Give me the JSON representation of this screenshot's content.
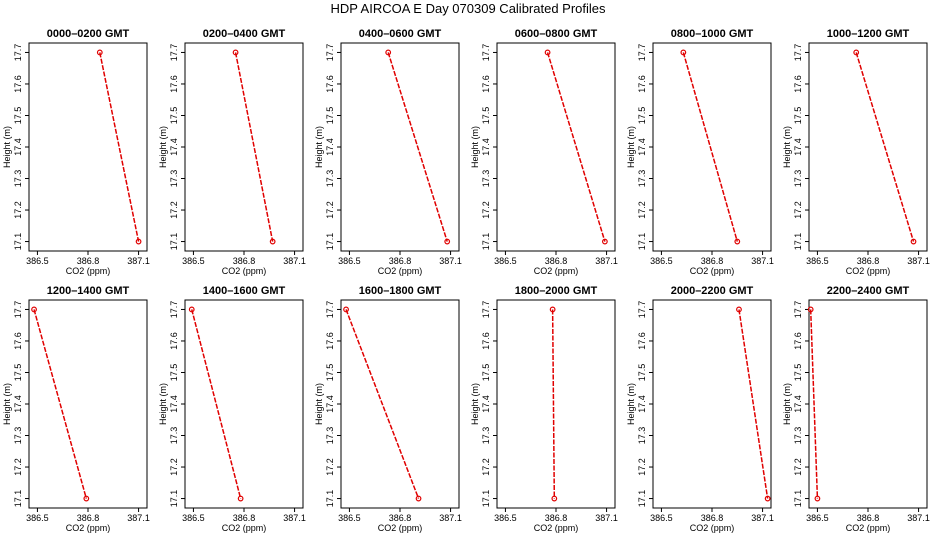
{
  "figure": {
    "title": "HDP  AIRCOA E  Day 070309  Calibrated Profiles"
  },
  "chart_data": [
    {
      "type": "line",
      "title": "0000–0200 GMT",
      "xlabel": "CO2 (ppm)",
      "ylabel": "Height (m)",
      "xlim": [
        386.45,
        387.15
      ],
      "ylim": [
        17.07,
        17.73
      ],
      "xticks": [
        386.5,
        386.8,
        387.1
      ],
      "xtick_labels": [
        "386.5",
        "386.8",
        "387.1"
      ],
      "yticks": [
        17.1,
        17.2,
        17.3,
        17.4,
        17.5,
        17.6,
        17.7
      ],
      "ytick_labels": [
        "17.1",
        "17.2",
        "17.3",
        "17.4",
        "17.5",
        "17.6",
        "17.7"
      ],
      "grid": false,
      "series": [
        {
          "x": [
            386.87,
            387.1
          ],
          "y": [
            17.7,
            17.1
          ],
          "color": "#e00000"
        }
      ]
    },
    {
      "type": "line",
      "title": "0200–0400 GMT",
      "xlabel": "CO2 (ppm)",
      "ylabel": "Height (m)",
      "xlim": [
        386.45,
        387.15
      ],
      "ylim": [
        17.07,
        17.73
      ],
      "xticks": [
        386.5,
        386.8,
        387.1
      ],
      "xtick_labels": [
        "386.5",
        "386.8",
        "387.1"
      ],
      "yticks": [
        17.1,
        17.2,
        17.3,
        17.4,
        17.5,
        17.6,
        17.7
      ],
      "ytick_labels": [
        "17.1",
        "17.2",
        "17.3",
        "17.4",
        "17.5",
        "17.6",
        "17.7"
      ],
      "grid": false,
      "series": [
        {
          "x": [
            386.75,
            386.97
          ],
          "y": [
            17.7,
            17.1
          ],
          "color": "#e00000"
        }
      ]
    },
    {
      "type": "line",
      "title": "0400–0600 GMT",
      "xlabel": "CO2 (ppm)",
      "ylabel": "Height (m)",
      "xlim": [
        386.45,
        387.15
      ],
      "ylim": [
        17.07,
        17.73
      ],
      "xticks": [
        386.5,
        386.8,
        387.1
      ],
      "xtick_labels": [
        "386.5",
        "386.8",
        "387.1"
      ],
      "yticks": [
        17.1,
        17.2,
        17.3,
        17.4,
        17.5,
        17.6,
        17.7
      ],
      "ytick_labels": [
        "17.1",
        "17.2",
        "17.3",
        "17.4",
        "17.5",
        "17.6",
        "17.7"
      ],
      "grid": false,
      "series": [
        {
          "x": [
            386.73,
            387.08
          ],
          "y": [
            17.7,
            17.1
          ],
          "color": "#e00000"
        }
      ]
    },
    {
      "type": "line",
      "title": "0600–0800 GMT",
      "xlabel": "CO2 (ppm)",
      "ylabel": "Height (m)",
      "xlim": [
        386.45,
        387.15
      ],
      "ylim": [
        17.07,
        17.73
      ],
      "xticks": [
        386.5,
        386.8,
        387.1
      ],
      "xtick_labels": [
        "386.5",
        "386.8",
        "387.1"
      ],
      "yticks": [
        17.1,
        17.2,
        17.3,
        17.4,
        17.5,
        17.6,
        17.7
      ],
      "ytick_labels": [
        "17.1",
        "17.2",
        "17.3",
        "17.4",
        "17.5",
        "17.6",
        "17.7"
      ],
      "grid": false,
      "series": [
        {
          "x": [
            386.75,
            387.09
          ],
          "y": [
            17.7,
            17.1
          ],
          "color": "#e00000"
        }
      ]
    },
    {
      "type": "line",
      "title": "0800–1000 GMT",
      "xlabel": "CO2 (ppm)",
      "ylabel": "Height (m)",
      "xlim": [
        386.45,
        387.15
      ],
      "ylim": [
        17.07,
        17.73
      ],
      "xticks": [
        386.5,
        386.8,
        387.1
      ],
      "xtick_labels": [
        "386.5",
        "386.8",
        "387.1"
      ],
      "yticks": [
        17.1,
        17.2,
        17.3,
        17.4,
        17.5,
        17.6,
        17.7
      ],
      "ytick_labels": [
        "17.1",
        "17.2",
        "17.3",
        "17.4",
        "17.5",
        "17.6",
        "17.7"
      ],
      "grid": false,
      "series": [
        {
          "x": [
            386.63,
            386.95
          ],
          "y": [
            17.7,
            17.1
          ],
          "color": "#e00000"
        }
      ]
    },
    {
      "type": "line",
      "title": "1000–1200 GMT",
      "xlabel": "CO2 (ppm)",
      "ylabel": "Height (m)",
      "xlim": [
        386.45,
        387.15
      ],
      "ylim": [
        17.07,
        17.73
      ],
      "xticks": [
        386.5,
        386.8,
        387.1
      ],
      "xtick_labels": [
        "386.5",
        "386.8",
        "387.1"
      ],
      "yticks": [
        17.1,
        17.2,
        17.3,
        17.4,
        17.5,
        17.6,
        17.7
      ],
      "ytick_labels": [
        "17.1",
        "17.2",
        "17.3",
        "17.4",
        "17.5",
        "17.6",
        "17.7"
      ],
      "grid": false,
      "series": [
        {
          "x": [
            386.73,
            387.07
          ],
          "y": [
            17.7,
            17.1
          ],
          "color": "#e00000"
        }
      ]
    },
    {
      "type": "line",
      "title": "1200–1400 GMT",
      "xlabel": "CO2 (ppm)",
      "ylabel": "Height (m)",
      "xlim": [
        386.45,
        387.15
      ],
      "ylim": [
        17.07,
        17.73
      ],
      "xticks": [
        386.5,
        386.8,
        387.1
      ],
      "xtick_labels": [
        "386.5",
        "386.8",
        "387.1"
      ],
      "yticks": [
        17.1,
        17.2,
        17.3,
        17.4,
        17.5,
        17.6,
        17.7
      ],
      "ytick_labels": [
        "17.1",
        "17.2",
        "17.3",
        "17.4",
        "17.5",
        "17.6",
        "17.7"
      ],
      "grid": false,
      "series": [
        {
          "x": [
            386.48,
            386.79
          ],
          "y": [
            17.7,
            17.1
          ],
          "color": "#e00000"
        }
      ]
    },
    {
      "type": "line",
      "title": "1400–1600 GMT",
      "xlabel": "CO2 (ppm)",
      "ylabel": "Height (m)",
      "xlim": [
        386.45,
        387.15
      ],
      "ylim": [
        17.07,
        17.73
      ],
      "xticks": [
        386.5,
        386.8,
        387.1
      ],
      "xtick_labels": [
        "386.5",
        "386.8",
        "387.1"
      ],
      "yticks": [
        17.1,
        17.2,
        17.3,
        17.4,
        17.5,
        17.6,
        17.7
      ],
      "ytick_labels": [
        "17.1",
        "17.2",
        "17.3",
        "17.4",
        "17.5",
        "17.6",
        "17.7"
      ],
      "grid": false,
      "series": [
        {
          "x": [
            386.49,
            386.78
          ],
          "y": [
            17.7,
            17.1
          ],
          "color": "#e00000"
        }
      ]
    },
    {
      "type": "line",
      "title": "1600–1800 GMT",
      "xlabel": "CO2 (ppm)",
      "ylabel": "Height (m)",
      "xlim": [
        386.45,
        387.15
      ],
      "ylim": [
        17.07,
        17.73
      ],
      "xticks": [
        386.5,
        386.8,
        387.1
      ],
      "xtick_labels": [
        "386.5",
        "386.8",
        "387.1"
      ],
      "yticks": [
        17.1,
        17.2,
        17.3,
        17.4,
        17.5,
        17.6,
        17.7
      ],
      "ytick_labels": [
        "17.1",
        "17.2",
        "17.3",
        "17.4",
        "17.5",
        "17.6",
        "17.7"
      ],
      "grid": false,
      "series": [
        {
          "x": [
            386.48,
            386.91
          ],
          "y": [
            17.7,
            17.1
          ],
          "color": "#e00000"
        }
      ]
    },
    {
      "type": "line",
      "title": "1800–2000 GMT",
      "xlabel": "CO2 (ppm)",
      "ylabel": "Height (m)",
      "xlim": [
        386.45,
        387.15
      ],
      "ylim": [
        17.07,
        17.73
      ],
      "xticks": [
        386.5,
        386.8,
        387.1
      ],
      "xtick_labels": [
        "386.5",
        "386.8",
        "387.1"
      ],
      "yticks": [
        17.1,
        17.2,
        17.3,
        17.4,
        17.5,
        17.6,
        17.7
      ],
      "ytick_labels": [
        "17.1",
        "17.2",
        "17.3",
        "17.4",
        "17.5",
        "17.6",
        "17.7"
      ],
      "grid": false,
      "series": [
        {
          "x": [
            386.78,
            386.79
          ],
          "y": [
            17.7,
            17.1
          ],
          "color": "#e00000"
        }
      ]
    },
    {
      "type": "line",
      "title": "2000–2200 GMT",
      "xlabel": "CO2 (ppm)",
      "ylabel": "Height (m)",
      "xlim": [
        386.45,
        387.15
      ],
      "ylim": [
        17.07,
        17.73
      ],
      "xticks": [
        386.5,
        386.8,
        387.1
      ],
      "xtick_labels": [
        "386.5",
        "386.8",
        "387.1"
      ],
      "yticks": [
        17.1,
        17.2,
        17.3,
        17.4,
        17.5,
        17.6,
        17.7
      ],
      "ytick_labels": [
        "17.1",
        "17.2",
        "17.3",
        "17.4",
        "17.5",
        "17.6",
        "17.7"
      ],
      "grid": false,
      "series": [
        {
          "x": [
            386.96,
            387.13
          ],
          "y": [
            17.7,
            17.1
          ],
          "color": "#e00000"
        }
      ]
    },
    {
      "type": "line",
      "title": "2200–2400 GMT",
      "xlabel": "CO2 (ppm)",
      "ylabel": "Height (m)",
      "xlim": [
        386.45,
        387.15
      ],
      "ylim": [
        17.07,
        17.73
      ],
      "xticks": [
        386.5,
        386.8,
        387.1
      ],
      "xtick_labels": [
        "386.5",
        "386.8",
        "387.1"
      ],
      "yticks": [
        17.1,
        17.2,
        17.3,
        17.4,
        17.5,
        17.6,
        17.7
      ],
      "ytick_labels": [
        "17.1",
        "17.2",
        "17.3",
        "17.4",
        "17.5",
        "17.6",
        "17.7"
      ],
      "grid": false,
      "series": [
        {
          "x": [
            386.46,
            386.5
          ],
          "y": [
            17.7,
            17.1
          ],
          "color": "#e00000"
        }
      ]
    }
  ]
}
